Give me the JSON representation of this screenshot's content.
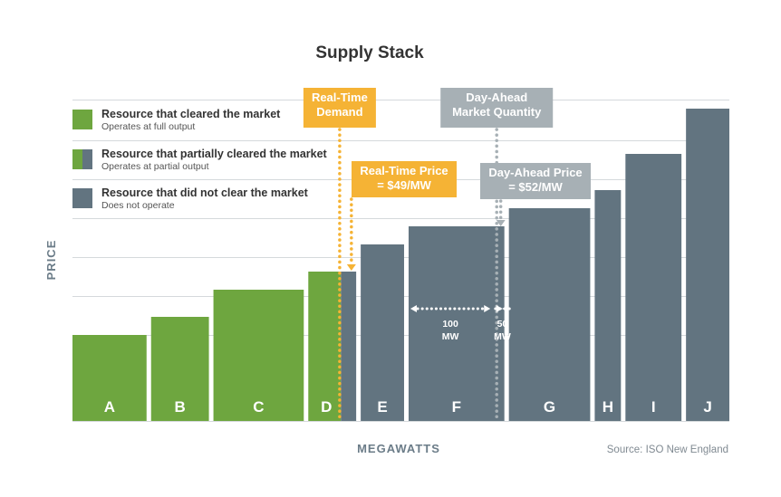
{
  "chart_data": {
    "type": "bar",
    "title": "Supply Stack",
    "xlabel": "MEGAWATTS",
    "ylabel": "PRICE",
    "source": "Source: ISO New England",
    "grid": true,
    "legend_placement": "top-left",
    "categories": [
      "A",
      "B",
      "C",
      "D",
      "E",
      "F",
      "G",
      "H",
      "I",
      "J"
    ],
    "widths": [
      82,
      64,
      100,
      53,
      48,
      106,
      90,
      29,
      62,
      48
    ],
    "values": [
      95,
      115,
      145,
      165,
      195,
      215,
      235,
      255,
      295,
      345
    ],
    "status": [
      "cleared",
      "cleared",
      "cleared",
      "partial",
      "not_cleared",
      "not_cleared",
      "not_cleared",
      "not_cleared",
      "not_cleared",
      "not_cleared"
    ],
    "partial_split": {
      "category": "D",
      "cleared_fraction": 0.68
    },
    "ylim": [
      0,
      355
    ],
    "gridlines": [
      0,
      95,
      138,
      181,
      224,
      267,
      310,
      355
    ],
    "legend": [
      {
        "key": "cleared",
        "label": "Resource that cleared the market",
        "sub": "Operates at full output"
      },
      {
        "key": "partial",
        "label": "Resource that partially cleared the market",
        "sub": "Operates at partial output"
      },
      {
        "key": "not_cleared",
        "label": "Resource that did not clear the market",
        "sub": "Does not operate"
      }
    ],
    "annotations": {
      "rt_demand": {
        "lines": [
          "Real-Time",
          "Demand"
        ],
        "position": 0.655
      },
      "da_quantity": {
        "lines": [
          "Day-Ahead",
          "Market Quantity"
        ],
        "position": 0.92
      },
      "rt_price": {
        "lines": [
          "Real-Time Price",
          "= $49/MW"
        ],
        "value": 165
      },
      "da_price": {
        "lines": [
          "Day-Ahead Price",
          "= $52/MW"
        ],
        "value": 215
      },
      "gap_100": {
        "lines": [
          "100",
          "MW"
        ]
      },
      "gap_50": {
        "lines": [
          "50",
          "MW"
        ]
      }
    },
    "colors": {
      "cleared": "#6ea63f",
      "not_cleared": "#627480",
      "rt": "#f5b335",
      "da": "#a7b0b5",
      "grid": "#d5d9dc"
    }
  }
}
